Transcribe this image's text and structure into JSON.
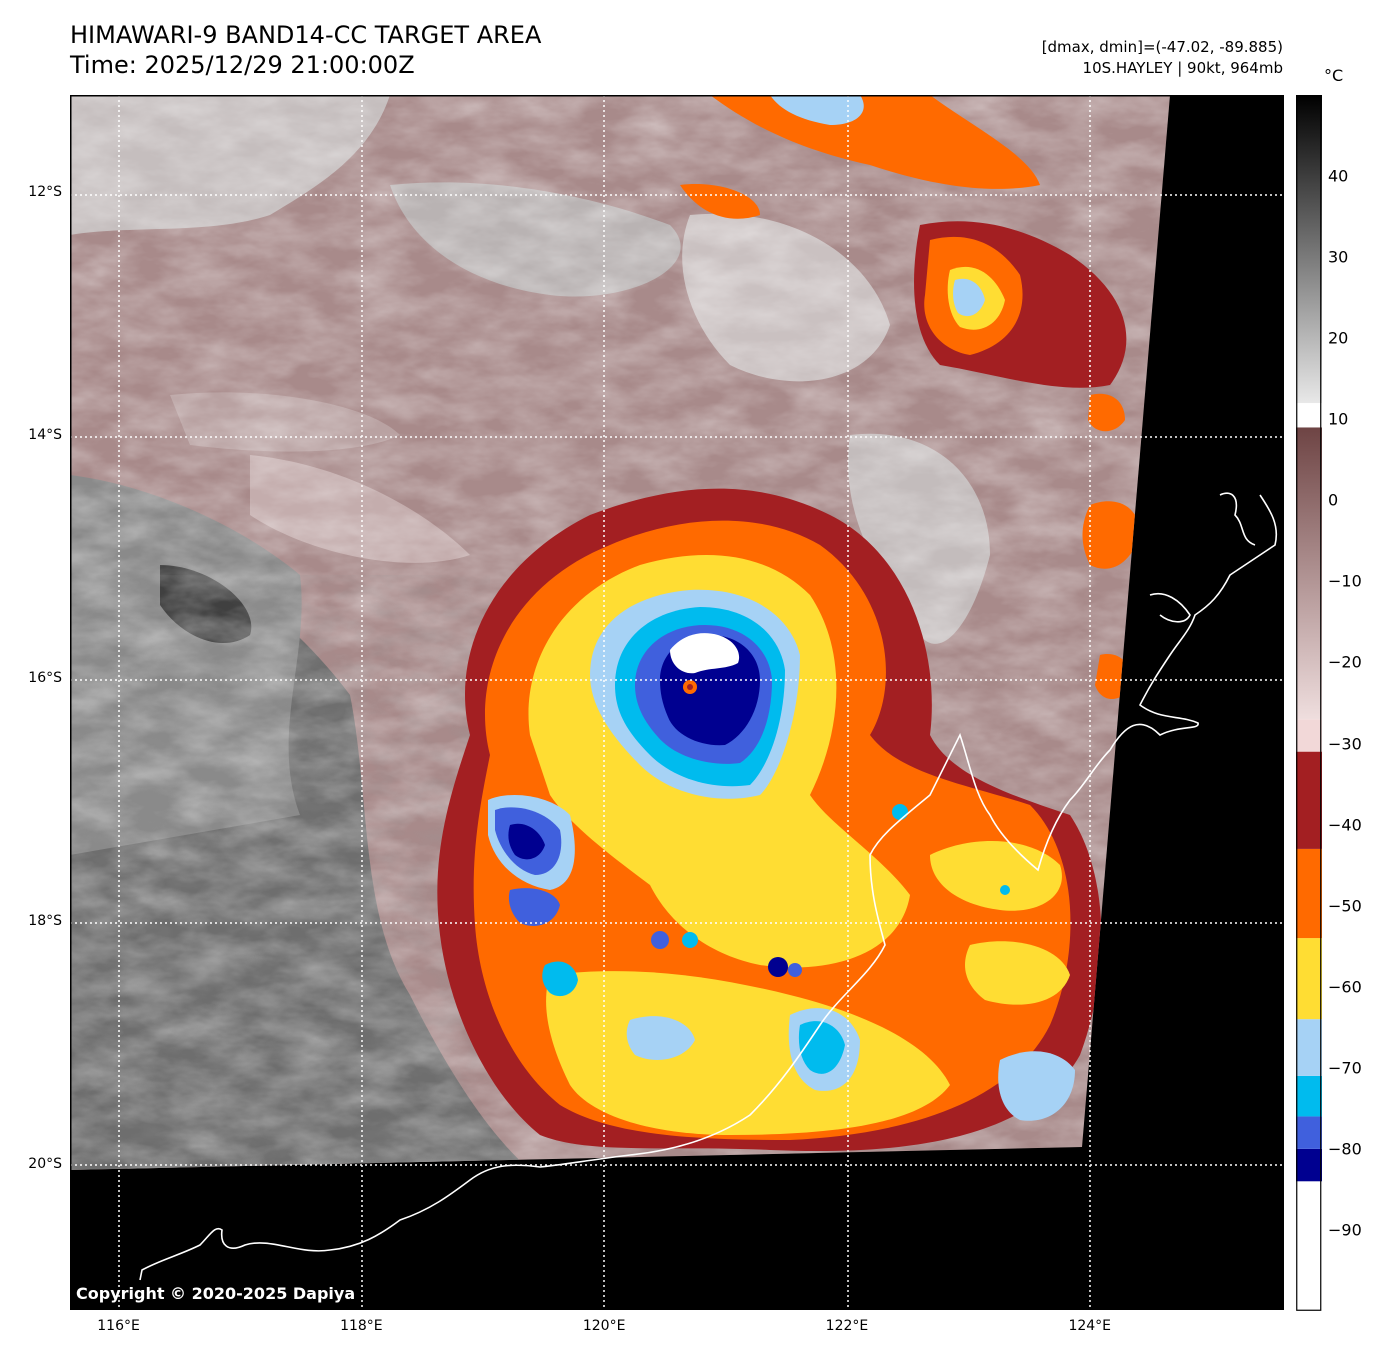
{
  "title": {
    "line1": "HIMAWARI-9 BAND14-CC TARGET AREA",
    "line2": "Time: 2025/12/29 21:00:00Z"
  },
  "info": {
    "line1": "[dmax, dmin]=(-47.02, -89.885)",
    "line2": "10S.HAYLEY | 90kt, 964mb"
  },
  "unit_label": "°C",
  "copyright": "Copyright © 2020-2025 Dapiya",
  "map": {
    "lon_range": [
      115.6,
      125.6
    ],
    "lat_range": [
      -21.2,
      -11.2
    ],
    "lat_ticks": [
      {
        "value": -12,
        "label": "12°S"
      },
      {
        "value": -14,
        "label": "14°S"
      },
      {
        "value": -16,
        "label": "16°S"
      },
      {
        "value": -18,
        "label": "18°S"
      },
      {
        "value": -20,
        "label": "20°S"
      }
    ],
    "lon_ticks": [
      {
        "value": 116,
        "label": "116°E"
      },
      {
        "value": 118,
        "label": "118°E"
      },
      {
        "value": 120,
        "label": "120°E"
      },
      {
        "value": 122,
        "label": "122°E"
      },
      {
        "value": 124,
        "label": "124°E"
      }
    ],
    "storm_center": {
      "lon": 120.7,
      "lat": -16.05
    },
    "grid": "dotted white",
    "coastline_color": "#ffffff",
    "nodata_color": "#000000"
  },
  "colorbar": {
    "range": [
      -100,
      50
    ],
    "ticks": [
      {
        "value": 40,
        "label": "40"
      },
      {
        "value": 30,
        "label": "30"
      },
      {
        "value": 20,
        "label": "20"
      },
      {
        "value": 10,
        "label": "10"
      },
      {
        "value": 0,
        "label": "0"
      },
      {
        "value": -10,
        "label": "−10"
      },
      {
        "value": -20,
        "label": "−20"
      },
      {
        "value": -30,
        "label": "−30"
      },
      {
        "value": -40,
        "label": "−40"
      },
      {
        "value": -50,
        "label": "−50"
      },
      {
        "value": -60,
        "label": "−60"
      },
      {
        "value": -70,
        "label": "−70"
      },
      {
        "value": -80,
        "label": "−80"
      },
      {
        "value": -90,
        "label": "−90"
      }
    ],
    "bands": [
      {
        "from": -100,
        "to": -84,
        "color": "#ffffff"
      },
      {
        "from": -84,
        "to": -80,
        "color": "#000090"
      },
      {
        "from": -80,
        "to": -76,
        "color": "#4060dd"
      },
      {
        "from": -76,
        "to": -71,
        "color": "#00bbee"
      },
      {
        "from": -71,
        "to": -64,
        "color": "#a6d2f5"
      },
      {
        "from": -64,
        "to": -54,
        "color": "#ffdd33"
      },
      {
        "from": -54,
        "to": -43,
        "color": "#ff6a00"
      },
      {
        "from": -43,
        "to": -31,
        "color": "#a31f22"
      },
      {
        "from": -31,
        "to": -27,
        "color": "#f2d8d8"
      },
      {
        "from": -27,
        "to": 9,
        "color_top": "#6e4444",
        "color_bottom": "#efdede"
      },
      {
        "from": 9,
        "to": 12,
        "color": "#ffffff"
      },
      {
        "from": 12,
        "to": 50,
        "color_top": "#000000",
        "color_bottom": "#e8e8e8"
      }
    ]
  }
}
